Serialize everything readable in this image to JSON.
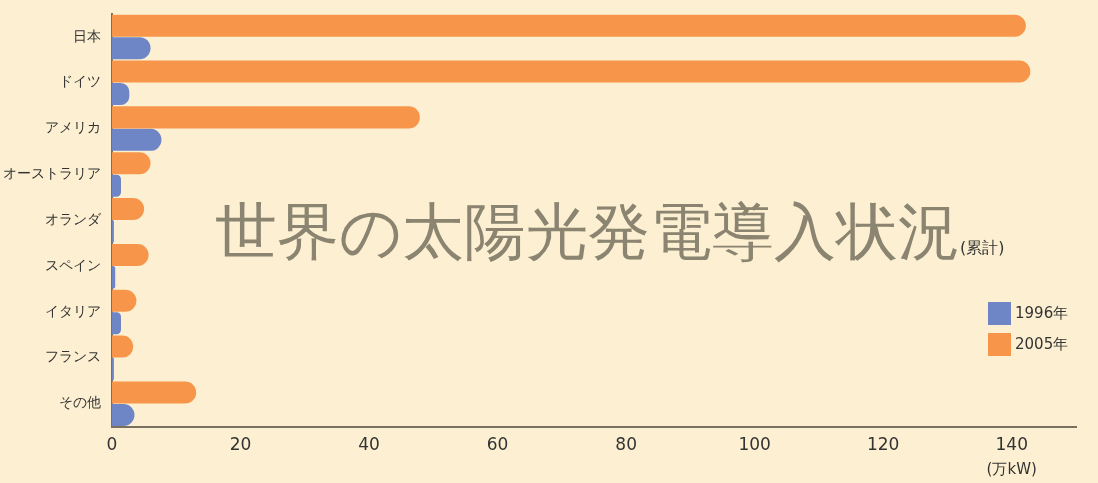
{
  "chart_data": {
    "type": "bar",
    "orientation": "horizontal",
    "title": "世界の太陽光発電導入状況",
    "subtitle": "(累計)",
    "xlabel": "(万kW)",
    "categories": [
      "日本",
      "ドイツ",
      "アメリカ",
      "オーストラリア",
      "オランダ",
      "スペイン",
      "イタリア",
      "フランス",
      "その他"
    ],
    "series": [
      {
        "name": "1996年",
        "color": "#6f86c6",
        "values": [
          6.0,
          2.7,
          7.7,
          1.4,
          0.3,
          0.5,
          1.4,
          0.3,
          3.5
        ]
      },
      {
        "name": "2005年",
        "color": "#f7964a",
        "values": [
          142.2,
          142.9,
          47.9,
          6.0,
          5.0,
          5.7,
          3.8,
          3.3,
          13.1
        ]
      }
    ],
    "xlim": [
      0,
      150
    ],
    "xticks": [
      0,
      20,
      40,
      60,
      80,
      100,
      120,
      140
    ],
    "grid": false,
    "legend": "right"
  }
}
